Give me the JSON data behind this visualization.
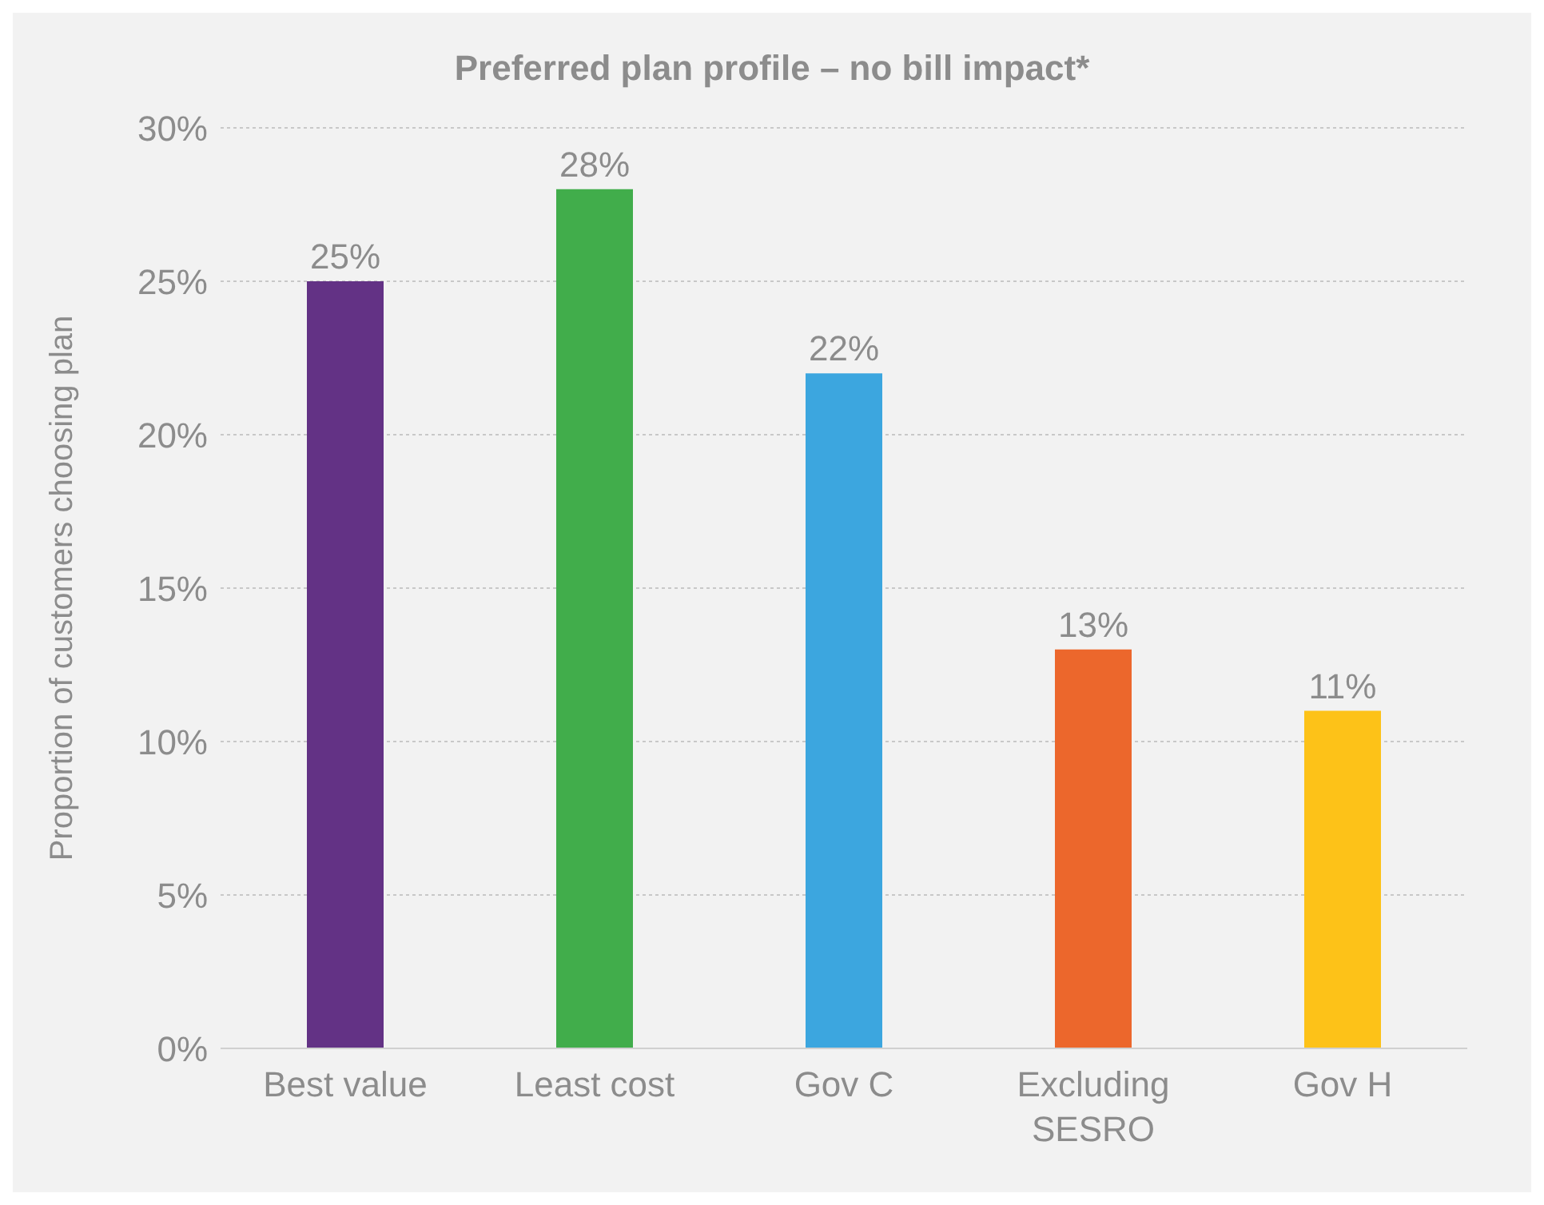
{
  "chart_data": {
    "type": "bar",
    "title": "Preferred plan profile – no bill impact*",
    "ylabel": "Proportion of customers choosing plan",
    "categories": [
      "Best value",
      "Least cost",
      "Gov C",
      "Excluding SESRO",
      "Gov H"
    ],
    "values": [
      25,
      28,
      22,
      13,
      11
    ],
    "colors": [
      "#633285",
      "#41ad4b",
      "#3ca6df",
      "#ec672c",
      "#fdc218"
    ],
    "value_labels": [
      "25%",
      "28%",
      "22%",
      "13%",
      "11%"
    ],
    "ylim": [
      0,
      30
    ],
    "yticks": [
      {
        "value": 0,
        "label": "0%"
      },
      {
        "value": 5,
        "label": "5%"
      },
      {
        "value": 10,
        "label": "10%"
      },
      {
        "value": 15,
        "label": "15%"
      },
      {
        "value": 20,
        "label": "20%"
      },
      {
        "value": 25,
        "label": "25%"
      },
      {
        "value": 30,
        "label": "30%"
      }
    ],
    "grid": "y"
  }
}
